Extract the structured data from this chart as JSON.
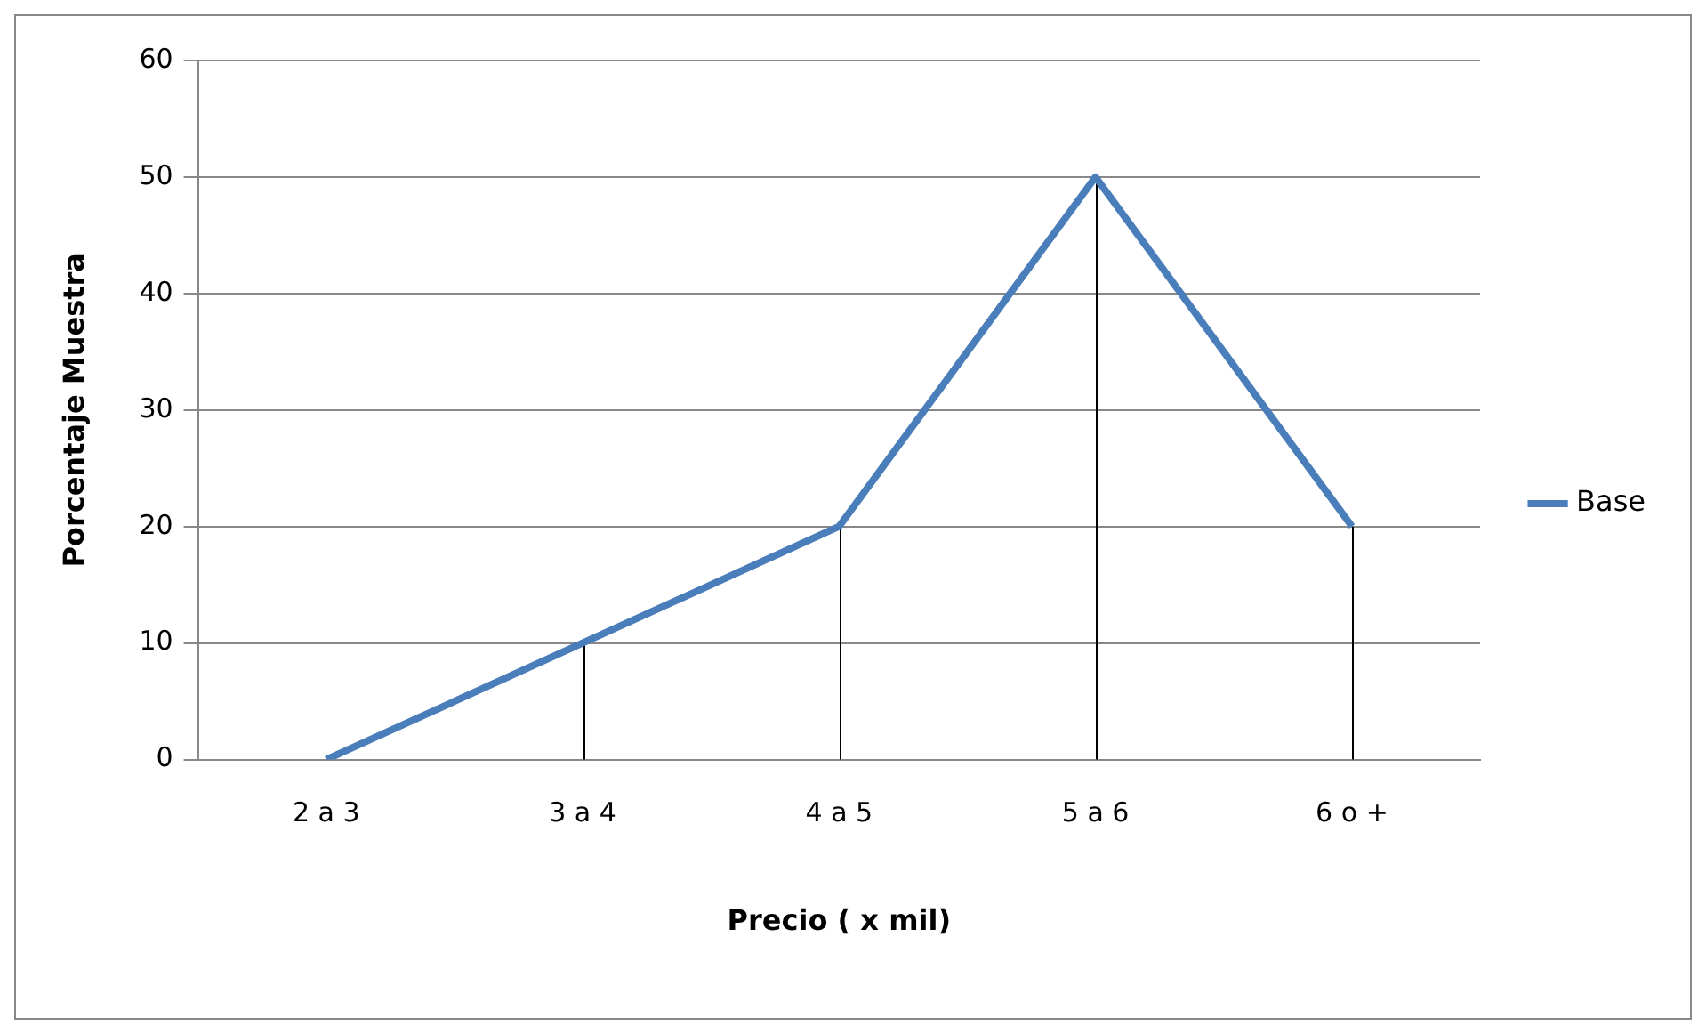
{
  "chart_data": {
    "type": "line",
    "xlabel": "Precio ( x mil)",
    "ylabel": "Porcentaje Muestra",
    "categories": [
      "2 a 3",
      "3 a 4",
      "4 a 5",
      "5 a 6",
      "6 o +"
    ],
    "series": [
      {
        "name": "Base",
        "color": "#4a7ebb",
        "values": [
          0,
          10,
          20,
          50,
          20
        ],
        "errors": [
          null,
          [
            0,
            10
          ],
          [
            0,
            20
          ],
          [
            0,
            50
          ],
          [
            0,
            20
          ]
        ]
      }
    ],
    "ylim": [
      0,
      60
    ],
    "yticks": [
      0,
      10,
      20,
      30,
      40,
      50,
      60
    ],
    "grid": "y",
    "legend": "right",
    "marker": "none",
    "line_style": "solid"
  }
}
